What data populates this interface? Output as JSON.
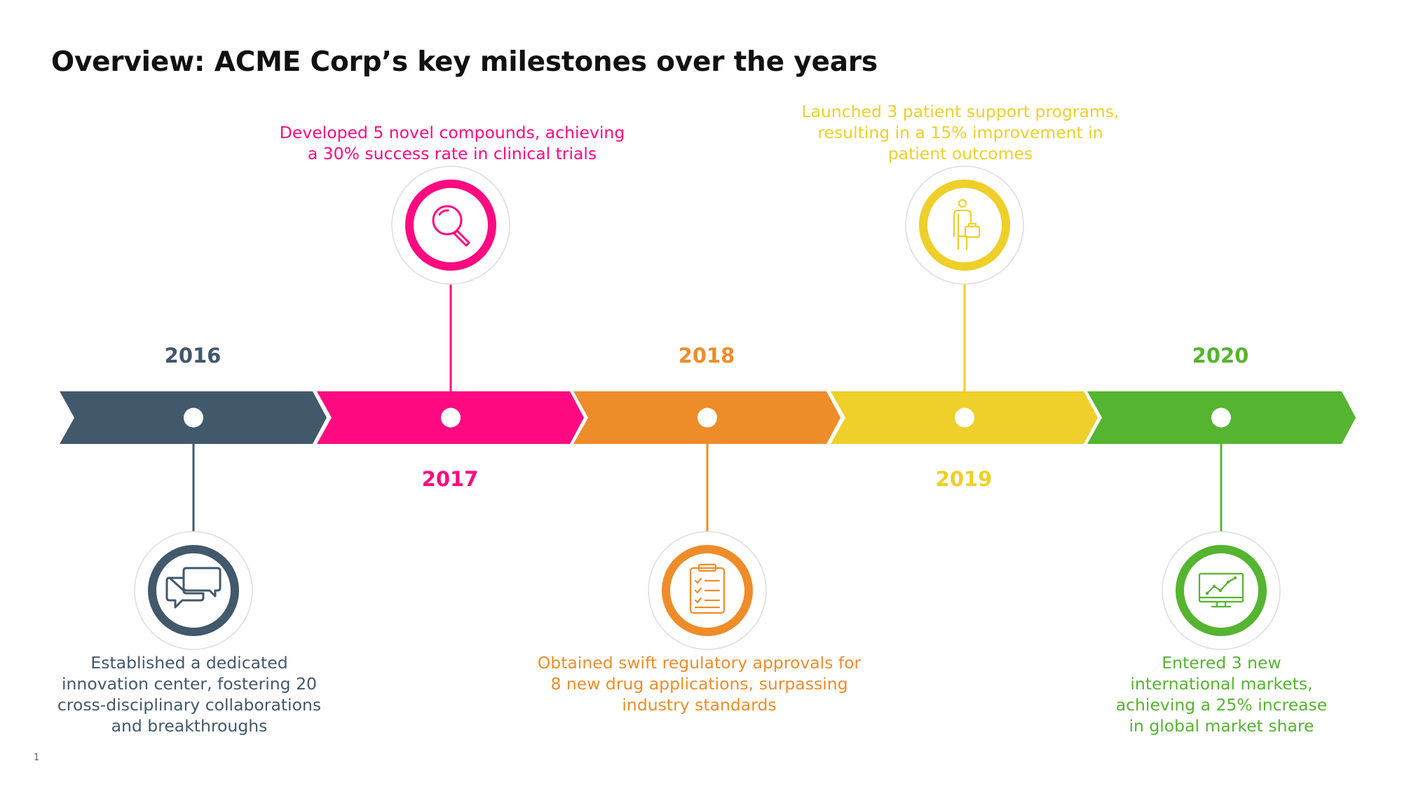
{
  "slide": {
    "title": "Overview: ACME Corp’s key milestones over the years",
    "page_number": "1"
  },
  "colors": {
    "slate": "#42586B",
    "magenta": "#FF0A80",
    "orange": "#EE8C2A",
    "yellow": "#EFCF2A",
    "green": "#55B430",
    "marker_fill": "#FFFFFF",
    "ring_outline": "#DDDDDD"
  },
  "milestones": [
    {
      "year": "2016",
      "color": "#42586B",
      "icon": "chat-bubbles-icon",
      "description": "Established a dedicated innovation center, fostering 20 cross-disciplinary collaborations and breakthroughs"
    },
    {
      "year": "2017",
      "color": "#FF0A80",
      "icon": "magnifier-icon",
      "description": "Developed 5 novel compounds, achieving a 30% success rate in clinical trials"
    },
    {
      "year": "2018",
      "color": "#EE8C2A",
      "icon": "clipboard-checklist-icon",
      "description": "Obtained swift regulatory approvals for 8 new drug applications, surpassing industry standards"
    },
    {
      "year": "2019",
      "color": "#EFCF2A",
      "icon": "person-with-briefcase-icon",
      "description": "Launched 3 patient support programs, resulting in a 15% improvement in patient outcomes"
    },
    {
      "year": "2020",
      "color": "#55B430",
      "icon": "monitor-chart-icon",
      "description": "Entered 3 new international markets, achieving a 25% increase in global market share"
    }
  ]
}
